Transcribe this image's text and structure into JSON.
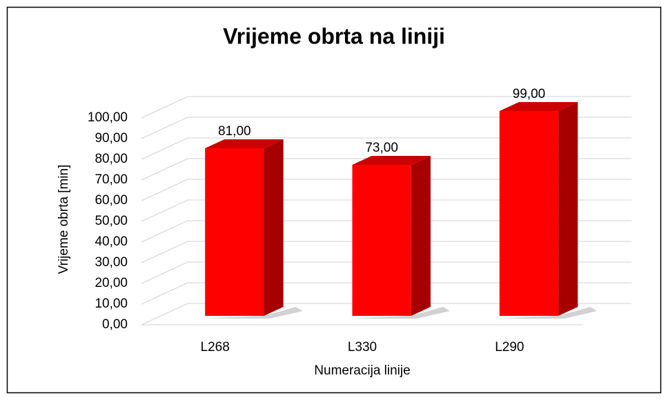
{
  "chart_data": {
    "type": "bar3d",
    "title": "Vrijeme obrta na liniji",
    "x_label": "Numeracija linije",
    "y_label": "Vrijeme obrta [min]",
    "categories": [
      "L268",
      "L330",
      "L290"
    ],
    "values": [
      81,
      73,
      99
    ],
    "value_labels": [
      "81,00",
      "73,00",
      "99,00"
    ],
    "color": "#ff0000",
    "ylim": [
      0,
      100
    ],
    "yticks": [
      {
        "value": 0,
        "label": "0,00"
      },
      {
        "value": 10,
        "label": "10,00"
      },
      {
        "value": 20,
        "label": "20,00"
      },
      {
        "value": 30,
        "label": "30,00"
      },
      {
        "value": 40,
        "label": "40,00"
      },
      {
        "value": 50,
        "label": "50,00"
      },
      {
        "value": 60,
        "label": "60,00"
      },
      {
        "value": 70,
        "label": "70,00"
      },
      {
        "value": 80,
        "label": "80,00"
      },
      {
        "value": 90,
        "label": "90,00"
      },
      {
        "value": 100,
        "label": "100,00"
      }
    ],
    "grid": true
  }
}
